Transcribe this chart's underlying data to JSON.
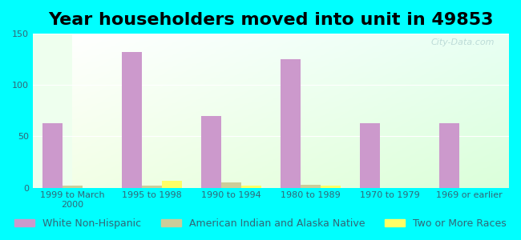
{
  "title": "Year householders moved into unit in 49853",
  "categories": [
    "1999 to March\n2000",
    "1995 to 1998",
    "1990 to 1994",
    "1980 to 1989",
    "1970 to 1979",
    "1969 or earlier"
  ],
  "series": {
    "White Non-Hispanic": [
      63,
      132,
      70,
      125,
      63,
      63
    ],
    "American Indian and Alaska Native": [
      2,
      2,
      5,
      3,
      0,
      0
    ],
    "Two or More Races": [
      0,
      7,
      2,
      2,
      0,
      0
    ]
  },
  "colors": {
    "White Non-Hispanic": "#cc99cc",
    "American Indian and Alaska Native": "#cccc99",
    "Two or More Races": "#ffff66"
  },
  "ylim": [
    0,
    150
  ],
  "yticks": [
    0,
    50,
    100,
    150
  ],
  "bar_width": 0.25,
  "background_color": "#00ffff",
  "plot_bg_start": "#ffffff",
  "plot_bg_end": "#ddffdd",
  "watermark": "City-Data.com",
  "title_fontsize": 16,
  "tick_fontsize": 8,
  "legend_fontsize": 9
}
